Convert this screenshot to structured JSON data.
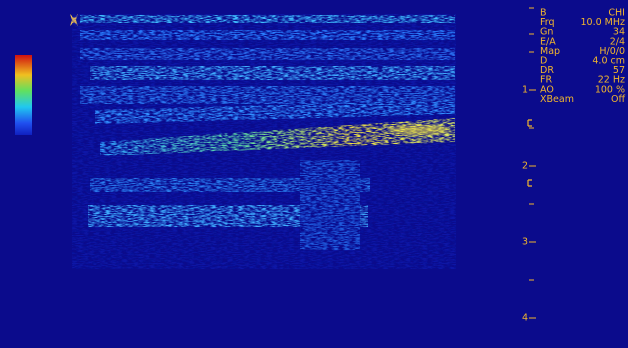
{
  "params": [
    {
      "label": "B",
      "value": "CHI"
    },
    {
      "label": "Frq",
      "value": "10.0 MHz"
    },
    {
      "label": "Gn",
      "value": "34"
    },
    {
      "label": "E/A",
      "value": "2/4"
    },
    {
      "label": "Map",
      "value": "H/0/0"
    },
    {
      "label": "D",
      "value": "4.0 cm"
    },
    {
      "label": "DR",
      "value": "57"
    },
    {
      "label": "FR",
      "value": "22 Hz"
    },
    {
      "label": "AO",
      "value": "100 %"
    },
    {
      "label": "XBeam",
      "value": "Off"
    }
  ],
  "depth_labels": [
    "1",
    "2",
    "3",
    "4"
  ]
}
